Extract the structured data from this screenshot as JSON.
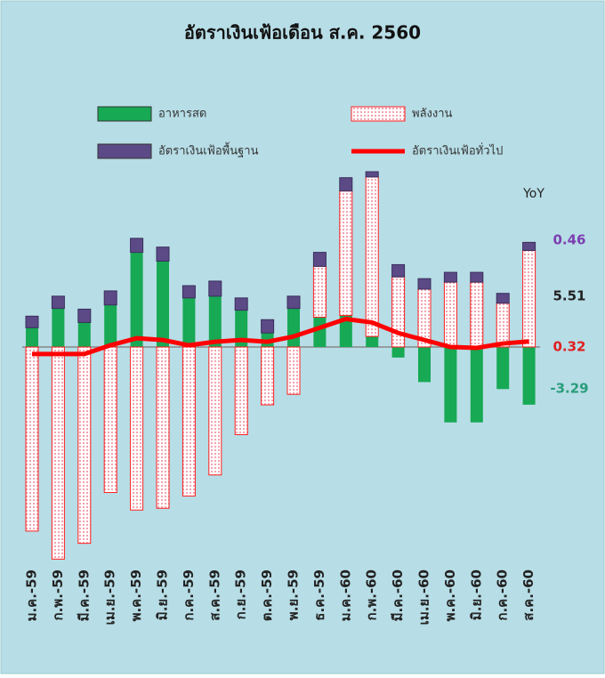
{
  "chart_data": {
    "type": "bar",
    "stacked": true,
    "title": "อัตราเงินเฟ้อเดือน ส.ค. 2560",
    "annotation": "YoY",
    "categories": [
      "ม.ค.-59",
      "ก.พ.-59",
      "มี.ค.-59",
      "เม.ย.-59",
      "พ.ค.-59",
      "มิ.ย.-59",
      "ก.ค.-59",
      "ส.ค.-59",
      "ก.ย.-59",
      "ต.ค.-59",
      "พ.ย.-59",
      "ธ.ค.-59",
      "ม.ค.-60",
      "ก.พ.-60",
      "มี.ค.-60",
      "เม.ย.-60",
      "พ.ค.-60",
      "มิ.ย.-60",
      "ก.ค.-60",
      "ส.ค.-60"
    ],
    "series": [
      {
        "name": "อาหารสด",
        "type": "bar",
        "color": "#17a954",
        "values": [
          1.1,
          2.2,
          1.4,
          2.4,
          5.4,
          4.9,
          2.8,
          2.9,
          2.1,
          0.8,
          2.2,
          1.7,
          1.8,
          0.6,
          -0.6,
          -2.0,
          -4.3,
          -4.3,
          -2.4,
          -3.29
        ]
      },
      {
        "name": "พลังงาน",
        "type": "bar",
        "color": "#ff2020",
        "values": [
          -10.5,
          -12.1,
          -11.2,
          -8.3,
          -9.3,
          -9.2,
          -8.5,
          -7.3,
          -5.0,
          -3.3,
          -2.7,
          2.9,
          7.1,
          9.1,
          4.0,
          3.3,
          3.7,
          3.7,
          2.5,
          5.51
        ]
      },
      {
        "name": "อัตราเงินเฟ้อพื้นฐาน",
        "type": "bar",
        "color": "#5b4a86",
        "values": [
          0.66,
          0.7,
          0.76,
          0.8,
          0.8,
          0.8,
          0.7,
          0.86,
          0.7,
          0.76,
          0.7,
          0.8,
          0.76,
          0.3,
          0.7,
          0.6,
          0.56,
          0.56,
          0.56,
          0.46
        ]
      },
      {
        "name": "อัตราเงินเฟ้อทั่วไป",
        "type": "line",
        "color": "#ff0000",
        "values": [
          -0.4,
          -0.4,
          -0.4,
          0.1,
          0.5,
          0.4,
          0.1,
          0.3,
          0.4,
          0.3,
          0.6,
          1.1,
          1.6,
          1.4,
          0.8,
          0.4,
          0.0,
          -0.05,
          0.2,
          0.32
        ]
      }
    ]
  }
}
